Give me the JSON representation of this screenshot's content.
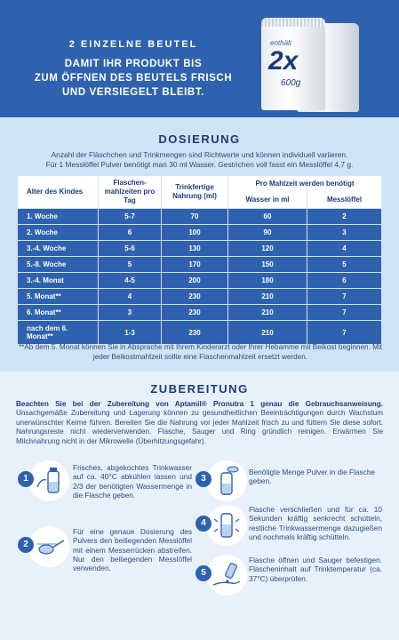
{
  "banner": {
    "title": "2 EINZELNE BEUTEL",
    "subtitle_lines": [
      "DAMIT IHR PRODUKT BIS",
      "ZUM ÖFFNEN DES BEUTELS FRISCH",
      "UND VERSIEGELT BLEIBT."
    ],
    "bag_contains": "enthält",
    "bag_count": "2x",
    "bag_weight": "600g"
  },
  "dosierung": {
    "title": "DOSIERUNG",
    "intro_lines": [
      "Anzahl der Fläschchen und Trinkmengen sind Richtwerte und können individuell variieren.",
      "Für 1 Messlöffel Pulver benötigt man 30 ml Wasser. Gestrichen voll fasst ein Messlöffel 4,7 g."
    ],
    "headers": {
      "age": "Alter des Kindes",
      "meals": "Flaschen-mahlzeiten pro Tag",
      "ready": "Trinkfertige Nahrung (ml)",
      "per_meal": "Pro Mahlzeit werden benötigt",
      "water": "Wasser in ml",
      "spoons": "Messlöffel"
    },
    "rows": [
      {
        "age": "1. Woche",
        "meals": "5-7",
        "ready": "70",
        "water": "60",
        "spoons": "2"
      },
      {
        "age": "2. Woche",
        "meals": "6",
        "ready": "100",
        "water": "90",
        "spoons": "3"
      },
      {
        "age": "3.-4. Woche",
        "meals": "5-6",
        "ready": "130",
        "water": "120",
        "spoons": "4"
      },
      {
        "age": "5.-8. Woche",
        "meals": "5",
        "ready": "170",
        "water": "150",
        "spoons": "5"
      },
      {
        "age": "3.-4. Monat",
        "meals": "4-5",
        "ready": "200",
        "water": "180",
        "spoons": "6"
      },
      {
        "age": "5. Monat**",
        "meals": "4",
        "ready": "230",
        "water": "210",
        "spoons": "7"
      },
      {
        "age": "6. Monat**",
        "meals": "3",
        "ready": "230",
        "water": "210",
        "spoons": "7"
      },
      {
        "age": "nach dem 6. Monat**",
        "meals": "1-3",
        "ready": "230",
        "water": "210",
        "spoons": "7"
      }
    ],
    "note": "**Ab dem 5. Monat können Sie in Absprache mit Ihrem Kinderarzt oder Ihrer Hebamme mit Beikost beginnen. Mit jeder Beikostmahlzeit sollte eine Flaschenmahlzeit ersetzt werden."
  },
  "zubereitung": {
    "title": "ZUBEREITUNG",
    "intro_bold": "Beachten Sie bei der Zubereitung von Aptamil® Pronutra 1 genau die Gebrauchsanweisung.",
    "intro_rest": " Unsachgemäße Zubereitung und Lagerung können zu gesundheitlichen Beeinträchtigungen durch Wachstum unerwünschter Keime führen. Bereiten Sie die Nahrung vor jeder Mahlzeit frisch zu und füttern Sie diese sofort. Nahrungsreste nicht wiederverwenden. Flasche, Sauger und Ring gründlich reinigen. Erwärmen Sie Milchnahrung nicht in der Mikrowelle (Überhitzungsgefahr).",
    "steps": [
      {
        "num": "1",
        "text": "Frisches, abgekochtes Trinkwasser auf ca. 40°C abkühlen lassen und 2/3 der benötigten Wassermenge in die Flasche geben."
      },
      {
        "num": "2",
        "text": "Für eine genaue Dosierung des Pulvers den beiliegenden Messlöffel mit einem Messerrücken abstreifen. Nur den beiliegenden Messlöffel verwenden."
      },
      {
        "num": "3",
        "text": "Benötigte Menge Pulver in die Flasche geben."
      },
      {
        "num": "4",
        "text": "Flasche verschließen und für ca. 10 Sekunden kräftig senkrecht schütteln, restliche Trinkwassermenge dazugießen und nochmals kräftig schütteln."
      },
      {
        "num": "5",
        "text": "Flasche öffnen und Sauger befestigen. Flascheninhalt auf Trinktemperatur (ca. 37°C) überprüfen."
      }
    ]
  }
}
